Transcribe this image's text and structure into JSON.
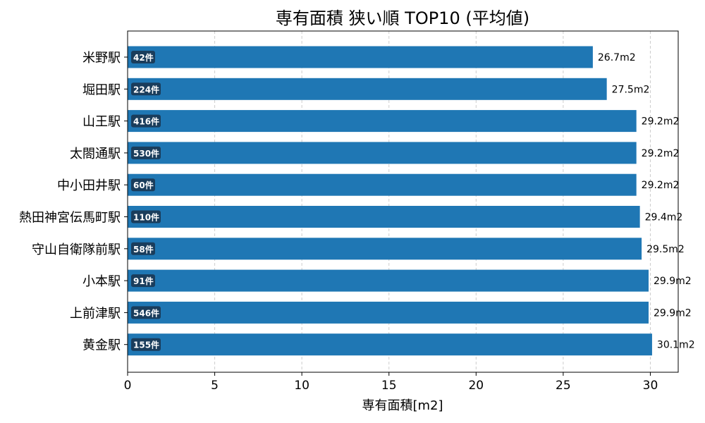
{
  "chart_data": {
    "type": "bar",
    "orientation": "horizontal",
    "title": "専有面積 狭い順 TOP10 (平均値)",
    "xlabel": "専有面積[m2]",
    "ylabel": "",
    "xlim": [
      0,
      31.6
    ],
    "xticks": [
      0,
      5,
      10,
      15,
      20,
      25,
      30
    ],
    "grid": "x-dashed",
    "categories": [
      "米野駅",
      "堀田駅",
      "山王駅",
      "太閤通駅",
      "中小田井駅",
      "熱田神宮伝馬町駅",
      "守山自衛隊前駅",
      "小本駅",
      "上前津駅",
      "黄金駅"
    ],
    "values": [
      26.7,
      27.5,
      29.2,
      29.2,
      29.2,
      29.4,
      29.5,
      29.9,
      29.9,
      30.1
    ],
    "value_labels": [
      "26.7m2",
      "27.5m2",
      "29.2m2",
      "29.2m2",
      "29.2m2",
      "29.4m2",
      "29.5m2",
      "29.9m2",
      "29.9m2",
      "30.1m2"
    ],
    "counts": [
      "42件",
      "224件",
      "416件",
      "530件",
      "60件",
      "110件",
      "58件",
      "91件",
      "546件",
      "155件"
    ],
    "colors": {
      "bar": "#1f77b4",
      "badge": "#1a3d5c",
      "grid": "#cccccc"
    }
  }
}
